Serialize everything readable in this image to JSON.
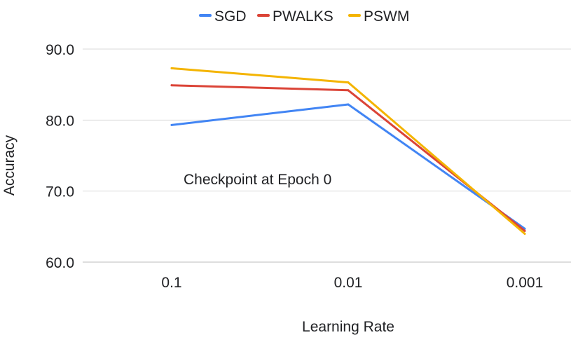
{
  "chart_data": {
    "type": "line",
    "title": "",
    "categories": [
      "0.1",
      "0.01",
      "0.001"
    ],
    "xlabel": "Learning Rate",
    "ylabel": "Accuracy",
    "ylim": [
      60,
      90
    ],
    "yticks": [
      "60.0",
      "70.0",
      "80.0",
      "90.0"
    ],
    "ytick_values": [
      60,
      70,
      80,
      90
    ],
    "grid": true,
    "legend_position": "top",
    "annotation": "Checkpoint at Epoch 0",
    "series": [
      {
        "name": "SGD",
        "color": "#4285f4",
        "values": [
          79.3,
          82.2,
          64.7
        ]
      },
      {
        "name": "PWALKS",
        "color": "#db4437",
        "values": [
          84.9,
          84.2,
          64.4
        ]
      },
      {
        "name": "PSWM",
        "color": "#f4b400",
        "values": [
          87.3,
          85.3,
          64.0
        ]
      }
    ]
  }
}
